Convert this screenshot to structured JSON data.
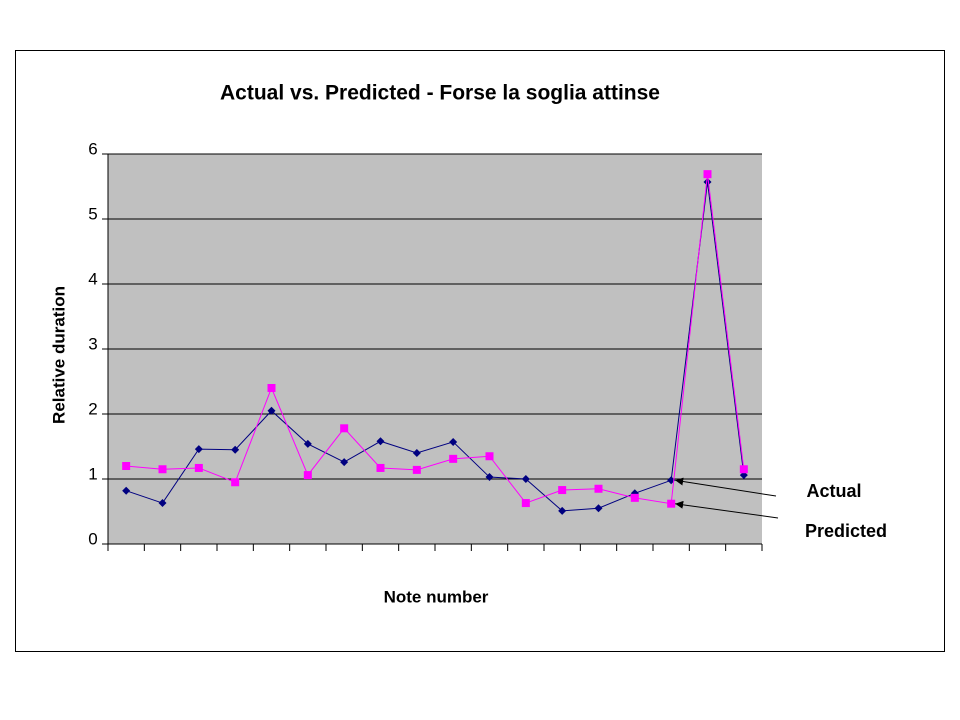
{
  "chart_data": {
    "type": "line",
    "title": "Actual vs. Predicted - Forse la soglia attinse",
    "xlabel": "Note number",
    "ylabel": "Relative duration",
    "categories": [
      null,
      null,
      null,
      null,
      null,
      null,
      null,
      null,
      null,
      null,
      null,
      null,
      null,
      null,
      null,
      null,
      null,
      null
    ],
    "series": [
      {
        "name": "Actual",
        "color": "#000080",
        "marker": "diamond",
        "values": [
          0.82,
          0.63,
          1.46,
          1.45,
          2.05,
          1.54,
          1.26,
          1.58,
          1.4,
          1.57,
          1.03,
          1.0,
          0.51,
          0.55,
          0.78,
          0.98,
          5.57,
          1.06
        ]
      },
      {
        "name": "Predicted",
        "color": "#ff00ff",
        "marker": "square",
        "values": [
          1.2,
          1.15,
          1.17,
          0.95,
          2.4,
          1.06,
          1.78,
          1.17,
          1.14,
          1.31,
          1.35,
          0.63,
          0.83,
          0.85,
          0.71,
          0.62,
          5.69,
          1.15
        ]
      }
    ],
    "ylim": [
      0,
      6
    ],
    "yticks": [
      0,
      1,
      2,
      3,
      4,
      5,
      6
    ],
    "grid": true,
    "plot_background": "#c0c0c0"
  }
}
